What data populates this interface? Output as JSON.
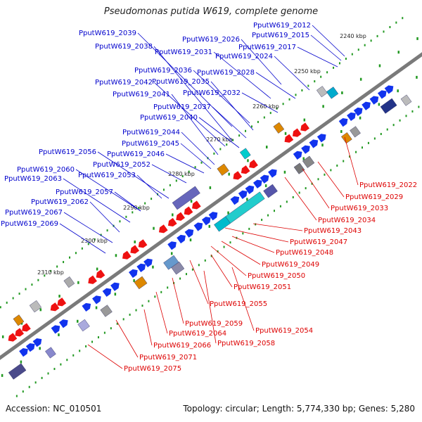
{
  "title": "Pseudomonas putida W619, complete genome",
  "footer": {
    "accession": "Accession: NC_010501",
    "summary": "Topology: circular; Length: 5,774,330 bp; Genes: 5,280"
  },
  "colors": {
    "forward_label": "#0000cc",
    "reverse_label": "#dd0000",
    "forward_arrow": "#1133ee",
    "reverse_arrow": "#ee1111",
    "backbone": "#888888",
    "tick": "#229922"
  },
  "ticks": [
    "2240 kbp",
    "2250 kbp",
    "2260 kbp",
    "2270 kbp",
    "2280 kbp",
    "2290 kbp",
    "2300 kbp",
    "2310 kbp"
  ],
  "forward_labels": [
    "PputW619_2012",
    "PputW619_2039",
    "PputW619_2015",
    "PputW619_2026",
    "PputW619_2038",
    "PputW619_2017",
    "PputW619_2031",
    "PputW619_2024",
    "PputW619_2036",
    "PputW619_2028",
    "PputW619_2042",
    "PputW619_2035",
    "PputW619_2041",
    "PputW619_2032",
    "PputW619_2037",
    "PputW619_2040",
    "PputW619_2044",
    "PputW619_2045",
    "PputW619_2056",
    "PputW619_2046",
    "PputW619_2052",
    "PputW619_2060",
    "PputW619_2053",
    "PputW619_2063",
    "PputW619_2057",
    "PputW619_2062",
    "PputW619_2067",
    "PputW619_2069"
  ],
  "reverse_labels": [
    "PputW619_2022",
    "PputW619_2029",
    "PputW619_2033",
    "PputW619_2034",
    "PputW619_2043",
    "PputW619_2047",
    "PputW619_2048",
    "PputW619_2049",
    "PputW619_2050",
    "PputW619_2051",
    "PputW619_2055",
    "PputW619_2054",
    "PputW619_2059",
    "PputW619_2064",
    "PputW619_2058",
    "PputW619_2066",
    "PputW619_2071",
    "PputW619_2075"
  ]
}
